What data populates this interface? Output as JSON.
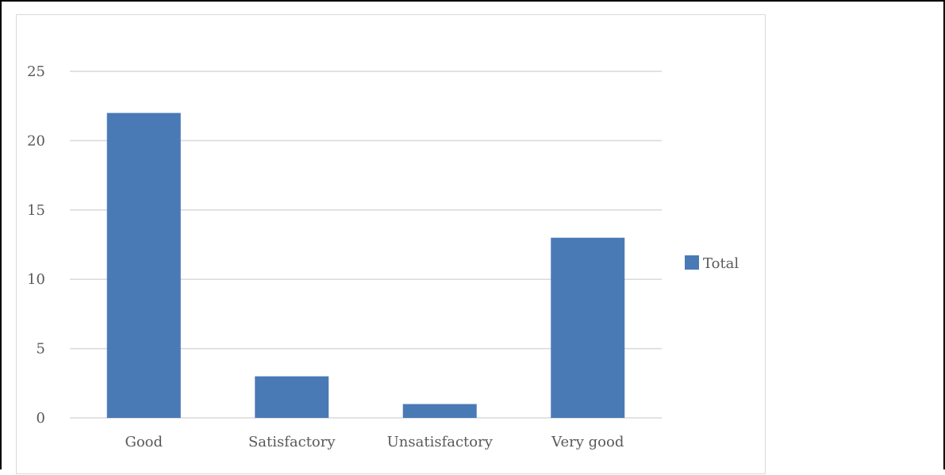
{
  "chart_data": {
    "type": "bar",
    "categories": [
      "Good",
      "Satisfactory",
      "Unsatisfactory",
      "Very good"
    ],
    "series": [
      {
        "name": "Total",
        "values": [
          22,
          3,
          1,
          13
        ],
        "color": "#4a7ab6"
      }
    ],
    "yticks": [
      "0",
      "5",
      "10",
      "15",
      "20",
      "25"
    ],
    "ylim": [
      0,
      25
    ],
    "grid": true,
    "legend_position": "right",
    "gridline_color": "#d9d9d9"
  }
}
